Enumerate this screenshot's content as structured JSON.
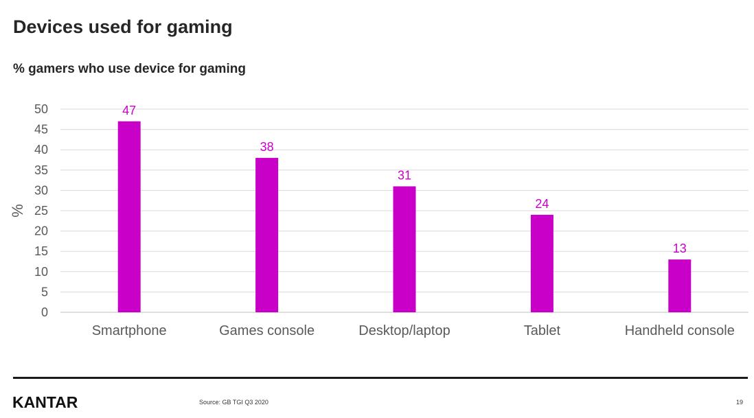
{
  "header": {
    "title": "Devices used for gaming",
    "subtitle": "% gamers who use device for gaming"
  },
  "chart_data": {
    "type": "bar",
    "categories": [
      "Smartphone",
      "Games console",
      "Desktop/laptop",
      "Tablet",
      "Handheld console"
    ],
    "values": [
      47,
      38,
      31,
      24,
      13
    ],
    "ylabel": "%",
    "ylim": [
      0,
      50
    ],
    "yticks": [
      0,
      5,
      10,
      15,
      20,
      25,
      30,
      35,
      40,
      45,
      50
    ],
    "grid": true,
    "bar_color": "#c800c8",
    "label_color": "#c800c8"
  },
  "footer": {
    "logo": "KANTAR",
    "source": "Source: GB TGI Q3 2020",
    "page_number": "19"
  }
}
